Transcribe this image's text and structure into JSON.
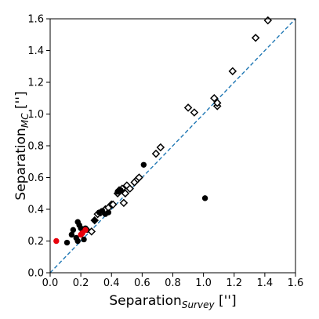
{
  "chart_data": {
    "type": "scatter",
    "title": "",
    "xlabel": {
      "main": "Separation",
      "sub": "Survey",
      "unit": " ['']"
    },
    "ylabel": {
      "main": "Separation",
      "sub": "MC",
      "unit": " ['']"
    },
    "xlim": [
      0.0,
      1.6
    ],
    "ylim": [
      0.0,
      1.6
    ],
    "x_ticks": [
      "0.0",
      "0.2",
      "0.4",
      "0.6",
      "0.8",
      "1.0",
      "1.2",
      "1.4",
      "1.6"
    ],
    "y_ticks": [
      "0.0",
      "0.2",
      "0.4",
      "0.6",
      "0.8",
      "1.0",
      "1.2",
      "1.4",
      "1.6"
    ],
    "grid": false,
    "reference_line": {
      "style": "dashed",
      "color": "#1f77b4",
      "x": [
        0.0,
        1.6
      ],
      "y": [
        0.0,
        1.6
      ]
    },
    "series": [
      {
        "marker": "open-diamond",
        "color": "#000000",
        "points": [
          [
            0.27,
            0.26
          ],
          [
            0.29,
            0.33
          ],
          [
            0.31,
            0.37
          ],
          [
            0.33,
            0.38
          ],
          [
            0.36,
            0.4
          ],
          [
            0.38,
            0.41
          ],
          [
            0.4,
            0.43
          ],
          [
            0.41,
            0.43
          ],
          [
            0.44,
            0.5
          ],
          [
            0.45,
            0.52
          ],
          [
            0.47,
            0.53
          ],
          [
            0.48,
            0.44
          ],
          [
            0.49,
            0.5
          ],
          [
            0.5,
            0.55
          ],
          [
            0.52,
            0.53
          ],
          [
            0.55,
            0.57
          ],
          [
            0.57,
            0.59
          ],
          [
            0.58,
            0.6
          ],
          [
            0.69,
            0.75
          ],
          [
            0.72,
            0.79
          ],
          [
            0.9,
            1.04
          ],
          [
            0.94,
            1.01
          ],
          [
            1.07,
            1.1
          ],
          [
            1.09,
            1.05
          ],
          [
            1.09,
            1.07
          ],
          [
            1.19,
            1.27
          ],
          [
            1.34,
            1.48
          ],
          [
            1.42,
            1.59
          ]
        ]
      },
      {
        "marker": "filled-circle",
        "color": "#000000",
        "points": [
          [
            0.11,
            0.19
          ],
          [
            0.14,
            0.24
          ],
          [
            0.15,
            0.27
          ],
          [
            0.17,
            0.22
          ],
          [
            0.18,
            0.2
          ],
          [
            0.18,
            0.32
          ],
          [
            0.19,
            0.3
          ],
          [
            0.2,
            0.28
          ],
          [
            0.21,
            0.25
          ],
          [
            0.22,
            0.21
          ],
          [
            0.23,
            0.28
          ],
          [
            0.24,
            0.27
          ],
          [
            0.29,
            0.33
          ],
          [
            0.32,
            0.38
          ],
          [
            0.34,
            0.39
          ],
          [
            0.36,
            0.37
          ],
          [
            0.38,
            0.38
          ],
          [
            0.44,
            0.51
          ],
          [
            0.46,
            0.52
          ],
          [
            0.61,
            0.68
          ],
          [
            1.01,
            0.47
          ]
        ]
      },
      {
        "marker": "filled-circle",
        "color": "#e8000b",
        "points": [
          [
            0.04,
            0.2
          ],
          [
            0.2,
            0.24
          ],
          [
            0.21,
            0.25
          ],
          [
            0.23,
            0.27
          ]
        ]
      }
    ]
  }
}
